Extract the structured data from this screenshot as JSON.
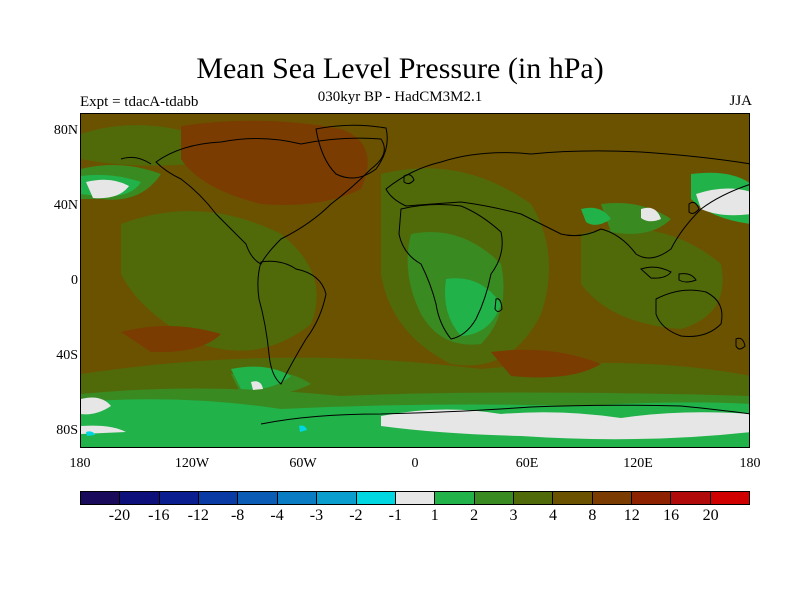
{
  "title": "Mean Sea Level Pressure (in hPa)",
  "subtitle": "030kyr BP - HadCM3M2.1",
  "experiment": "Expt = tdacA-tdabb",
  "season": "JJA",
  "y_ticks": [
    "80N",
    "40N",
    "0",
    "40S",
    "80S"
  ],
  "x_ticks": [
    "180",
    "120W",
    "60W",
    "0",
    "60E",
    "120E",
    "180"
  ],
  "colorbar": {
    "colors": [
      "#1a0a5c",
      "#0d0f7a",
      "#0a1e8f",
      "#0a3aa3",
      "#0a5cb5",
      "#0a7cc4",
      "#0a9ecf",
      "#00d7e0",
      "#e6e6e6",
      "#21b24a",
      "#3a8a22",
      "#506a0a",
      "#6b5200",
      "#7a3c00",
      "#8c2200",
      "#b00a0a",
      "#d00000"
    ],
    "labels": [
      "-20",
      "-16",
      "-12",
      "-8",
      "-4",
      "-3",
      "-2",
      "-1",
      "1",
      "2",
      "3",
      "4",
      "8",
      "12",
      "16",
      "20"
    ]
  },
  "palette": {
    "ocean_base": "#6b5200",
    "level_4": "#506a0a",
    "level_3": "#3a8a22",
    "level_2": "#21b24a",
    "level_1": "#e6e6e6",
    "level_8": "#7a3c00",
    "neg_1": "#00d7e0"
  }
}
